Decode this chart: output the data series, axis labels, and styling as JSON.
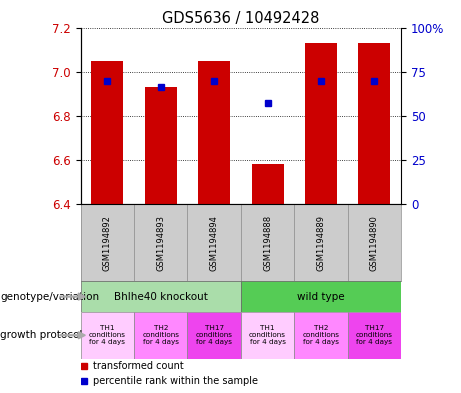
{
  "title": "GDS5636 / 10492428",
  "samples": [
    "GSM1194892",
    "GSM1194893",
    "GSM1194894",
    "GSM1194888",
    "GSM1194889",
    "GSM1194890"
  ],
  "transformed_count": [
    7.05,
    6.93,
    7.05,
    6.58,
    7.13,
    7.13
  ],
  "percentile_rank": [
    6.96,
    6.93,
    6.96,
    6.86,
    6.96,
    6.96
  ],
  "ylim": [
    6.4,
    7.2
  ],
  "yticks": [
    6.4,
    6.6,
    6.8,
    7.0,
    7.2
  ],
  "right_yticks_labels": [
    "0",
    "25",
    "50",
    "75",
    "100%"
  ],
  "right_ytick_vals": [
    6.4,
    6.6,
    6.8,
    7.0,
    7.2
  ],
  "bar_color": "#cc0000",
  "dot_color": "#0000cc",
  "bg_color": "#ffffff",
  "genotype_group1_color": "#aaddaa",
  "genotype_group2_color": "#55cc55",
  "growth_colors": [
    "#ffccff",
    "#ff88ff",
    "#ee44ee",
    "#ffccff",
    "#ff88ff",
    "#ee44ee"
  ],
  "growth_labels": [
    "TH1\nconditions\nfor 4 days",
    "TH2\nconditions\nfor 4 days",
    "TH17\nconditions\nfor 4 days",
    "TH1\nconditions\nfor 4 days",
    "TH2\nconditions\nfor 4 days",
    "TH17\nconditions\nfor 4 days"
  ],
  "label_genotype": "genotype/variation",
  "label_protocol": "growth protocol",
  "legend_red": "transformed count",
  "legend_blue": "percentile rank within the sample"
}
